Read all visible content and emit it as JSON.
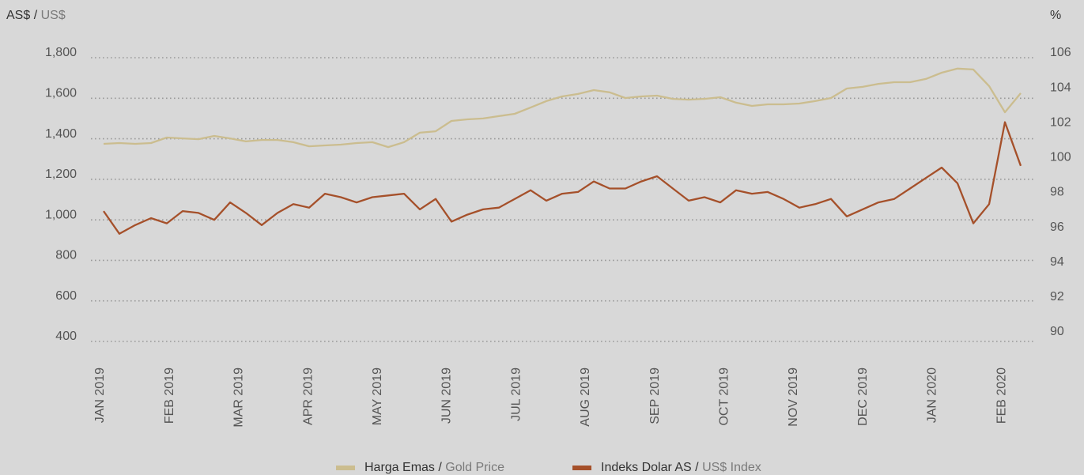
{
  "chart_data": {
    "type": "line",
    "ylabel": [
      "AS$ /",
      "US$"
    ],
    "y2label": "%",
    "xticks": [
      "JAN 2019",
      "FEB 2019",
      "MAR 2019",
      "APR 2019",
      "MAY 2019",
      "JUN 2019",
      "JUL 2019",
      "AUG 2019",
      "SEP 2019",
      "OCT 2019",
      "NOV 2019",
      "DEC 2019",
      "JAN 2020",
      "FEB 2020"
    ],
    "ylim": [
      400,
      1800
    ],
    "yticks": [
      {
        "value": 400,
        "label": "400"
      },
      {
        "value": 600,
        "label": "600"
      },
      {
        "value": 800,
        "label": "800"
      },
      {
        "value": 1000,
        "label": "1,000"
      },
      {
        "value": 1200,
        "label": "1,200"
      },
      {
        "value": 1400,
        "label": "1,400"
      },
      {
        "value": 1600,
        "label": "1,600"
      },
      {
        "value": 1800,
        "label": "1,800"
      }
    ],
    "y2lim": [
      90,
      106
    ],
    "y2ticks": [
      90,
      92,
      94,
      96,
      98,
      100,
      102,
      104,
      106
    ],
    "grid": true,
    "legend": "bottom",
    "series": [
      {
        "name": [
          "Harga Emas /",
          "Gold Price"
        ],
        "color": "#cbbd8f",
        "values": [
          1375,
          1379,
          1375,
          1379,
          1406,
          1402,
          1398,
          1414,
          1402,
          1387,
          1394,
          1394,
          1383,
          1363,
          1367,
          1371,
          1379,
          1383,
          1359,
          1383,
          1430,
          1437,
          1488,
          1496,
          1500,
          1512,
          1523,
          1554,
          1586,
          1609,
          1621,
          1640,
          1629,
          1601,
          1609,
          1613,
          1597,
          1593,
          1597,
          1605,
          1578,
          1562,
          1570,
          1570,
          1574,
          1586,
          1601,
          1648,
          1656,
          1671,
          1679,
          1679,
          1695,
          1726,
          1746,
          1742,
          1660,
          1531,
          1625
        ]
      },
      {
        "name": [
          "Indeks Dolar AS /",
          "US$ Index"
        ],
        "color": "#a5502a",
        "axis": "y2",
        "values": [
          97.2,
          95.9,
          96.4,
          96.8,
          96.5,
          97.2,
          97.1,
          96.7,
          97.7,
          97.1,
          96.4,
          97.1,
          97.6,
          97.4,
          98.2,
          98.0,
          97.7,
          98.0,
          98.1,
          98.2,
          97.3,
          97.9,
          96.6,
          97.0,
          97.3,
          97.4,
          97.9,
          98.4,
          97.8,
          98.2,
          98.3,
          98.9,
          98.5,
          98.5,
          98.9,
          99.2,
          98.5,
          97.8,
          98.0,
          97.7,
          98.4,
          98.2,
          98.3,
          97.9,
          97.4,
          97.6,
          97.9,
          96.9,
          97.3,
          97.7,
          97.9,
          98.5,
          99.1,
          99.7,
          98.8,
          96.5,
          97.6,
          102.3,
          99.8
        ]
      }
    ]
  }
}
